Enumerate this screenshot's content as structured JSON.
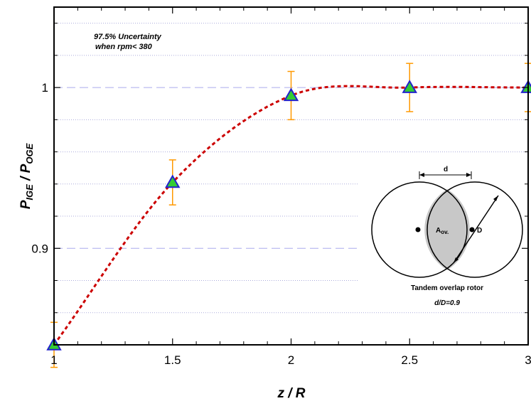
{
  "chart_data": {
    "type": "scatter",
    "x": [
      1,
      1.5,
      2,
      2.5,
      3
    ],
    "series": [
      {
        "values": [
          0.84,
          0.941,
          0.995,
          1.0,
          1.0
        ],
        "error": [
          0.014,
          0.014,
          0.015,
          0.015,
          0.015
        ],
        "line_color": "#cc0000",
        "marker_fill": "#33cc33",
        "marker_edge": "#2222cc",
        "errorbar_color": "#ff9900"
      }
    ],
    "xlim": [
      1,
      3
    ],
    "ylim": [
      0.84,
      1.05
    ],
    "xticks": [
      1,
      1.5,
      2,
      2.5,
      3
    ],
    "xtick_labels": [
      "1",
      "1.5",
      "2",
      "2.5",
      "3"
    ],
    "yticks": [
      0.9,
      1
    ],
    "ytick_labels": [
      "0.9",
      "1"
    ],
    "xlabel": "z / R",
    "ylabel": {
      "main": "P",
      "sub1": "IGE",
      "sep": " / P",
      "sub2": "OGE"
    },
    "major_grid_y": [
      0.9,
      1.0
    ],
    "minor_grid_y": [
      0.86,
      0.88,
      0.92,
      0.94,
      0.96,
      0.98,
      1.02,
      1.04
    ],
    "annotation": {
      "line1": "97.5% Uncertainty",
      "line2": "when rpm< 380"
    },
    "inset": {
      "d_label": "d",
      "overlap_label": "A",
      "overlap_sub": "ov.",
      "D_label": "D",
      "caption": "Tandem overlap rotor",
      "ratio": "d/D=0.9"
    }
  }
}
